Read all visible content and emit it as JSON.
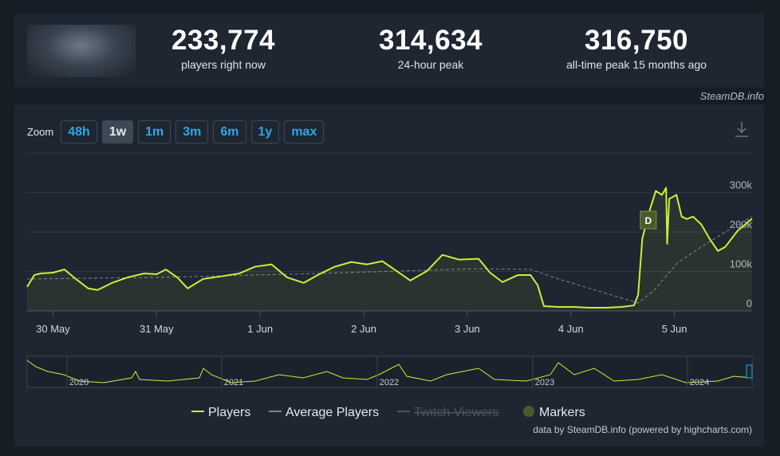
{
  "stats": [
    {
      "value": "233,774",
      "label": "players right now"
    },
    {
      "value": "314,634",
      "label": "24-hour peak"
    },
    {
      "value": "316,750",
      "label": "all-time peak 15 months ago"
    }
  ],
  "source": "SteamDB.info",
  "zoom": {
    "label": "Zoom",
    "buttons": [
      "48h",
      "1w",
      "1m",
      "3m",
      "6m",
      "1y",
      "max"
    ],
    "selected": 1
  },
  "chart_data": {
    "type": "line",
    "xlim": [
      -0.25,
      6.75
    ],
    "xticks": [
      {
        "value": 0,
        "label": "30 May"
      },
      {
        "value": 1,
        "label": "31 May"
      },
      {
        "value": 2,
        "label": "1 Jun"
      },
      {
        "value": 3,
        "label": "2 Jun"
      },
      {
        "value": 4,
        "label": "3 Jun"
      },
      {
        "value": 5,
        "label": "4 Jun"
      },
      {
        "value": 6,
        "label": "5 Jun"
      }
    ],
    "ylim": [
      0,
      400000
    ],
    "yticks": [
      0,
      {
        "value": 100000,
        "label": "100k"
      },
      {
        "value": 200000,
        "label": "200k"
      },
      {
        "value": 300000,
        "label": "300k"
      }
    ],
    "grid": true,
    "series": [
      {
        "name": "Players",
        "color": "#c9f03a",
        "x": [
          -0.25,
          -0.18,
          -0.12,
          0,
          0.11,
          0.22,
          0.34,
          0.43,
          0.57,
          0.72,
          0.88,
          1.0,
          1.09,
          1.2,
          1.3,
          1.45,
          1.61,
          1.8,
          1.95,
          2.11,
          2.26,
          2.42,
          2.57,
          2.72,
          2.88,
          3.03,
          3.18,
          3.34,
          3.45,
          3.61,
          3.76,
          3.92,
          4.11,
          4.22,
          4.34,
          4.49,
          4.61,
          4.68,
          4.74,
          4.88,
          5.03,
          5.18,
          5.34,
          5.49,
          5.61,
          5.65,
          5.69,
          5.76,
          5.82,
          5.88,
          5.92,
          5.93,
          5.95,
          6.02,
          6.07,
          6.12,
          6.18,
          6.26,
          6.34,
          6.42,
          6.49,
          6.61,
          6.75
        ],
        "values": [
          61000,
          91000,
          95000,
          97000,
          105000,
          81000,
          57000,
          53000,
          71000,
          85000,
          95000,
          93000,
          105000,
          85000,
          57000,
          81000,
          87000,
          95000,
          112000,
          118000,
          85000,
          71000,
          93000,
          112000,
          124000,
          118000,
          126000,
          97000,
          77000,
          101000,
          142000,
          130000,
          132000,
          97000,
          73000,
          91000,
          91000,
          65000,
          12000,
          10000,
          10000,
          8000,
          8000,
          10000,
          14000,
          41000,
          183000,
          254000,
          304000,
          294000,
          312000,
          170000,
          284000,
          294000,
          239000,
          233000,
          239000,
          219000,
          183000,
          152000,
          162000,
          203000,
          233774
        ]
      },
      {
        "name": "Average Players",
        "color": "#7d8690",
        "x": [
          -0.25,
          1.03,
          2.57,
          4.11,
          4.61,
          4.88,
          5.26,
          5.65,
          5.8,
          6.03,
          6.26,
          6.57,
          6.75
        ],
        "values": [
          81000,
          85000,
          95000,
          107000,
          105000,
          81000,
          51000,
          20000,
          51000,
          122000,
          162000,
          213000,
          239000
        ]
      }
    ],
    "extra_legend": [
      {
        "name": "Twitch Viewers",
        "hidden": true,
        "color": "#4a5360"
      },
      {
        "name": "Markers",
        "color": "#4b5a2c"
      }
    ],
    "marker": {
      "label": "D",
      "x": 5.74
    },
    "navigator": {
      "labels": [
        "2020",
        "2021",
        "2022",
        "2023",
        "2024"
      ]
    },
    "credits": "data by SteamDB.info (powered by highcharts.com)"
  }
}
